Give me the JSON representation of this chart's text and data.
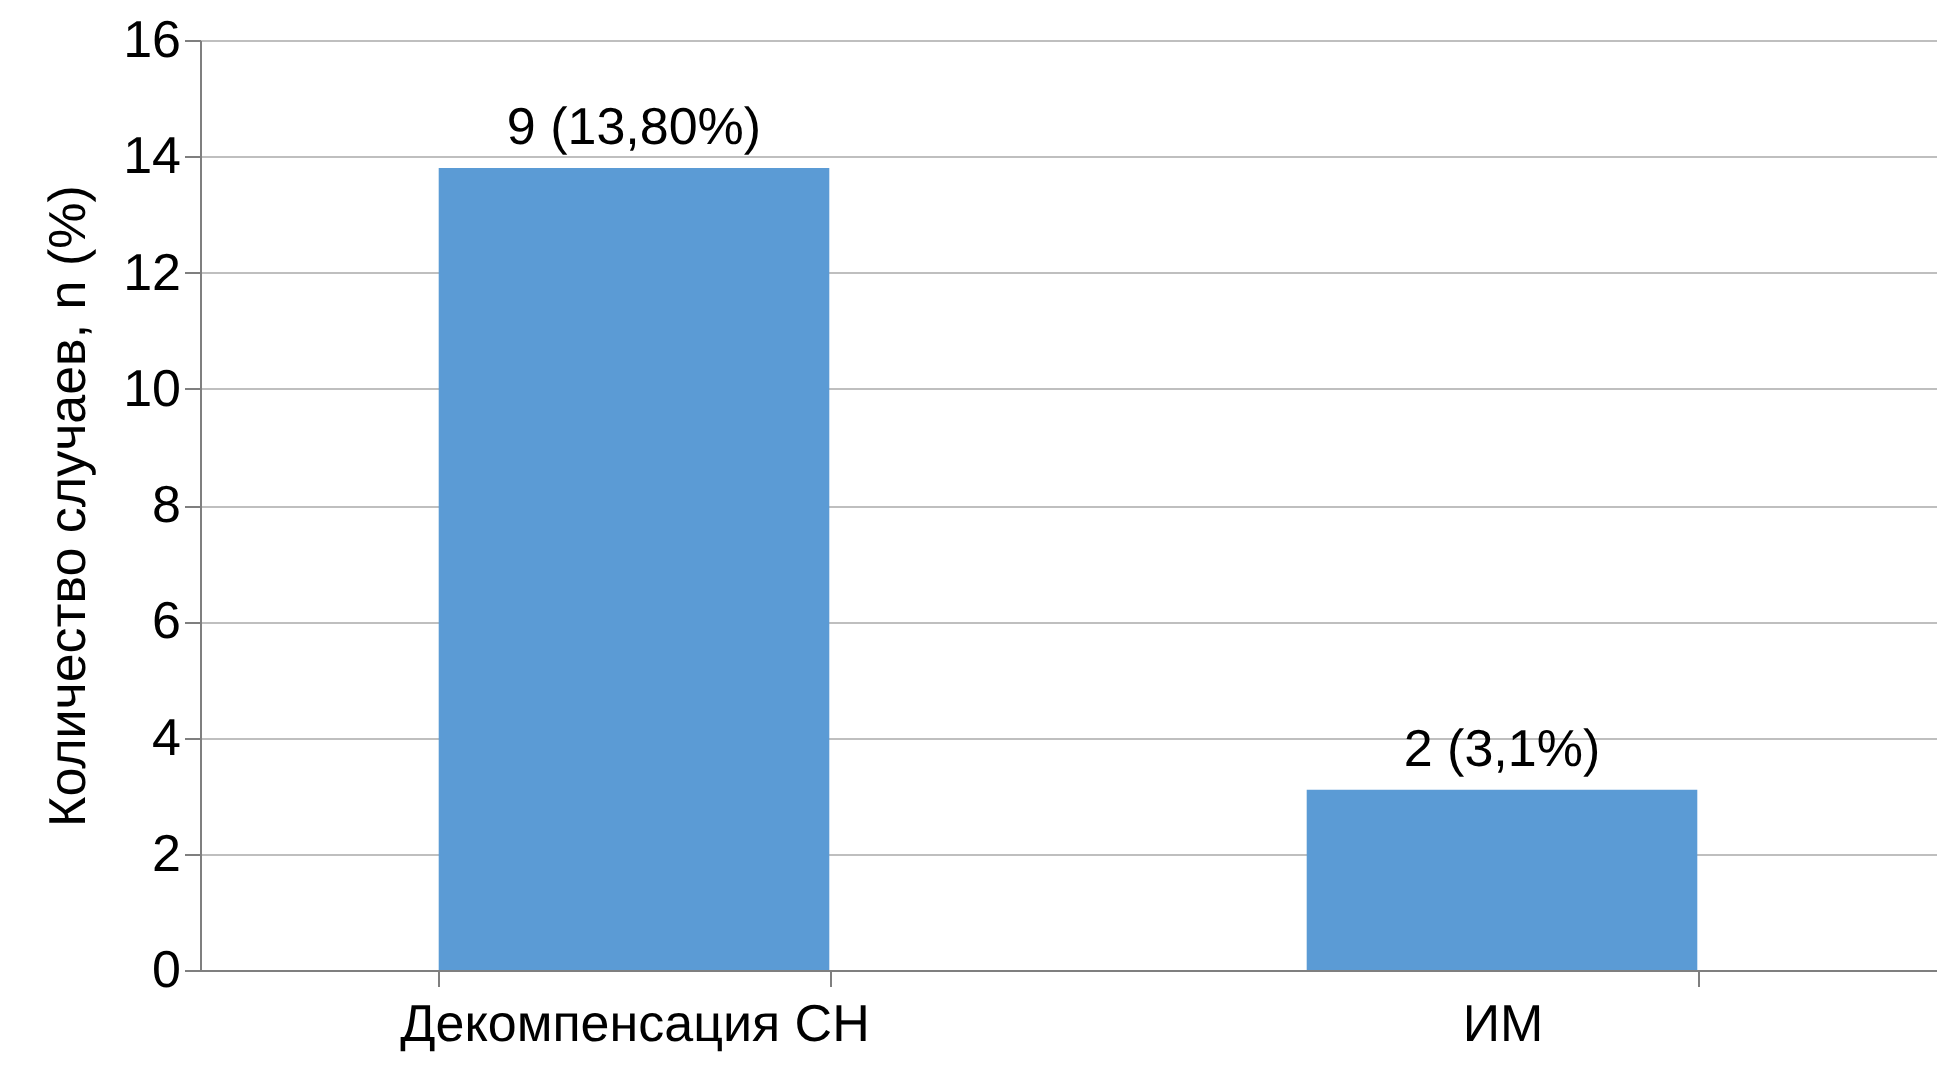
{
  "chart_data": {
    "type": "bar",
    "ylabel": "Количество случаев, n (%)",
    "categories": [
      "Декомпенсация СН",
      "ИМ"
    ],
    "values": [
      13.8,
      3.1
    ],
    "value_labels": [
      "9 (13,80%)",
      "2 (3,1%)"
    ],
    "color": "#5b9bd5",
    "ylim": [
      0,
      16
    ],
    "yticks": [
      0,
      2,
      4,
      6,
      8,
      10,
      12,
      14,
      16
    ],
    "grid": "y"
  }
}
